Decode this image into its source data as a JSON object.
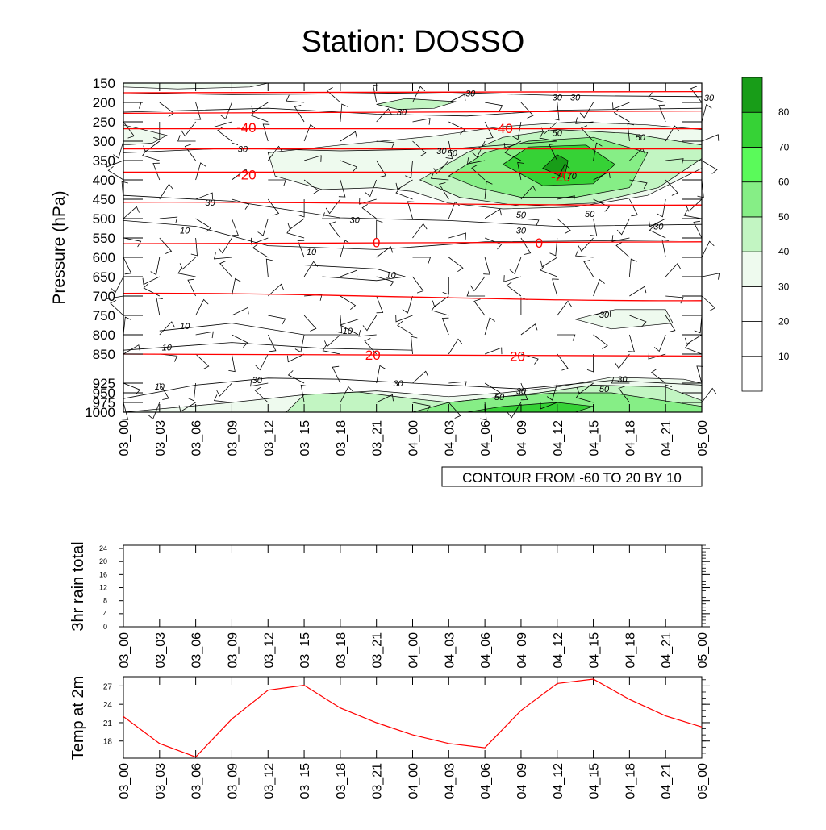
{
  "title": "Station: DOSSO",
  "times": [
    "03_00",
    "03_03",
    "03_06",
    "03_09",
    "03_12",
    "03_15",
    "03_18",
    "03_21",
    "04_00",
    "04_03",
    "04_06",
    "04_09",
    "04_12",
    "04_15",
    "04_18",
    "04_21",
    "05_00"
  ],
  "main_plot": {
    "ylabel": "Pressure (hPa)",
    "pressure_levels": [
      150,
      200,
      250,
      300,
      350,
      400,
      450,
      500,
      550,
      600,
      650,
      700,
      750,
      800,
      850,
      925,
      950,
      975,
      1000
    ],
    "contour_note": "CONTOUR FROM -60 TO 20 BY 10",
    "colorbar": {
      "labels": [
        "10",
        "20",
        "30",
        "40",
        "50",
        "60",
        "70",
        "80"
      ],
      "colors": [
        "#ffffff",
        "#ffffff",
        "#ffffff",
        "#eefaee",
        "#c2f5c2",
        "#86ee86",
        "#5afa5a",
        "#36d236",
        "#189d18"
      ]
    },
    "temperature_isotherm_labels": [
      {
        "text": "-40",
        "t": 3.4,
        "p": 265
      },
      {
        "text": "-40",
        "t": 10.5,
        "p": 267
      },
      {
        "text": "-20",
        "t": 3.4,
        "p": 386
      },
      {
        "text": "-20",
        "t": 12.1,
        "p": 392
      },
      {
        "text": "0",
        "t": 7.0,
        "p": 561
      },
      {
        "text": "0",
        "t": 11.5,
        "p": 563
      },
      {
        "text": "20",
        "t": 6.9,
        "p": 852
      },
      {
        "text": "20",
        "t": 10.9,
        "p": 855
      }
    ],
    "humidity_contour_labels": [
      {
        "text": "30",
        "t": 9.6,
        "p": 176
      },
      {
        "text": "30",
        "t": 12.0,
        "p": 186
      },
      {
        "text": "30",
        "t": 12.5,
        "p": 186
      },
      {
        "text": "30",
        "t": 16.2,
        "p": 187
      },
      {
        "text": "30",
        "t": 7.7,
        "p": 224
      },
      {
        "text": "30",
        "t": 8.8,
        "p": 325
      },
      {
        "text": "30",
        "t": 3.3,
        "p": 320
      },
      {
        "text": "30",
        "t": 2.4,
        "p": 458
      },
      {
        "text": "30",
        "t": 6.4,
        "p": 503
      },
      {
        "text": "30",
        "t": 11.0,
        "p": 530
      },
      {
        "text": "30",
        "t": 14.8,
        "p": 520
      },
      {
        "text": "30",
        "t": 3.7,
        "p": 917
      },
      {
        "text": "30",
        "t": 7.6,
        "p": 925
      },
      {
        "text": "30",
        "t": 11.0,
        "p": 945
      },
      {
        "text": "30",
        "t": 13.8,
        "p": 915
      },
      {
        "text": "30",
        "t": 13.3,
        "p": 748
      },
      {
        "text": "50",
        "t": 9.1,
        "p": 330
      },
      {
        "text": "50",
        "t": 12.0,
        "p": 278
      },
      {
        "text": "50",
        "t": 14.3,
        "p": 290
      },
      {
        "text": "50",
        "t": 11.0,
        "p": 490
      },
      {
        "text": "50",
        "t": 12.9,
        "p": 487
      },
      {
        "text": "50",
        "t": 10.4,
        "p": 960
      },
      {
        "text": "50",
        "t": 13.3,
        "p": 940
      },
      {
        "text": "10",
        "t": 1.7,
        "p": 530
      },
      {
        "text": "10",
        "t": 5.2,
        "p": 585
      },
      {
        "text": "10",
        "t": 7.4,
        "p": 645
      },
      {
        "text": "10",
        "t": 1.7,
        "p": 777
      },
      {
        "text": "10",
        "t": 1.2,
        "p": 832
      },
      {
        "text": "10",
        "t": 6.2,
        "p": 790
      },
      {
        "text": "10",
        "t": 1.0,
        "p": 933
      },
      {
        "text": "70",
        "t": 12.4,
        "p": 390
      }
    ]
  },
  "rain_plot": {
    "ylabel": "3hr rain total",
    "yticks": [
      "0",
      "4",
      "8",
      "12",
      "16",
      "20",
      "24"
    ]
  },
  "temp_plot": {
    "ylabel": "Temp at 2m",
    "yticks": [
      "18",
      "21",
      "24",
      "27"
    ]
  },
  "chart_data": [
    {
      "type": "heatmap",
      "title": "Station: DOSSO",
      "xlabel": "",
      "ylabel": "Pressure (hPa)",
      "x": [
        "03_00",
        "03_03",
        "03_06",
        "03_09",
        "03_12",
        "03_15",
        "03_18",
        "03_21",
        "04_00",
        "04_03",
        "04_06",
        "04_09",
        "04_12",
        "04_15",
        "04_18",
        "04_21",
        "05_00"
      ],
      "ylim": [
        1000,
        150
      ],
      "description_values": "relative humidity shading (%) with temperature isotherms (deg C)",
      "isotherms_c": [
        -60,
        -50,
        -40,
        -30,
        -20,
        -10,
        0,
        10,
        20
      ],
      "rh_bins": [
        10,
        20,
        30,
        40,
        50,
        60,
        70,
        80
      ]
    },
    {
      "type": "line",
      "title": "",
      "ylabel": "3hr rain total",
      "x": [
        "03_00",
        "03_03",
        "03_06",
        "03_09",
        "03_12",
        "03_15",
        "03_18",
        "03_21",
        "04_00",
        "04_03",
        "04_06",
        "04_09",
        "04_12",
        "04_15",
        "04_18",
        "04_21",
        "05_00"
      ],
      "values": [
        0,
        0,
        0,
        0,
        0,
        0,
        0,
        0,
        0,
        0,
        0,
        0,
        0,
        0,
        0,
        0,
        0
      ],
      "ylim": [
        0,
        25
      ]
    },
    {
      "type": "line",
      "title": "",
      "ylabel": "Temp at 2m",
      "x": [
        "03_00",
        "03_03",
        "03_06",
        "03_09",
        "03_12",
        "03_15",
        "03_18",
        "03_21",
        "04_00",
        "04_03",
        "04_06",
        "04_09",
        "04_12",
        "04_15",
        "04_18",
        "04_21",
        "05_00"
      ],
      "values": [
        22.0,
        17.6,
        15.4,
        21.6,
        26.3,
        27.1,
        23.4,
        21.0,
        19.0,
        17.6,
        16.9,
        23.0,
        27.4,
        28.1,
        24.8,
        22.1,
        20.3
      ],
      "ylim": [
        15.2,
        28.5
      ],
      "color": "#ff0000"
    }
  ]
}
